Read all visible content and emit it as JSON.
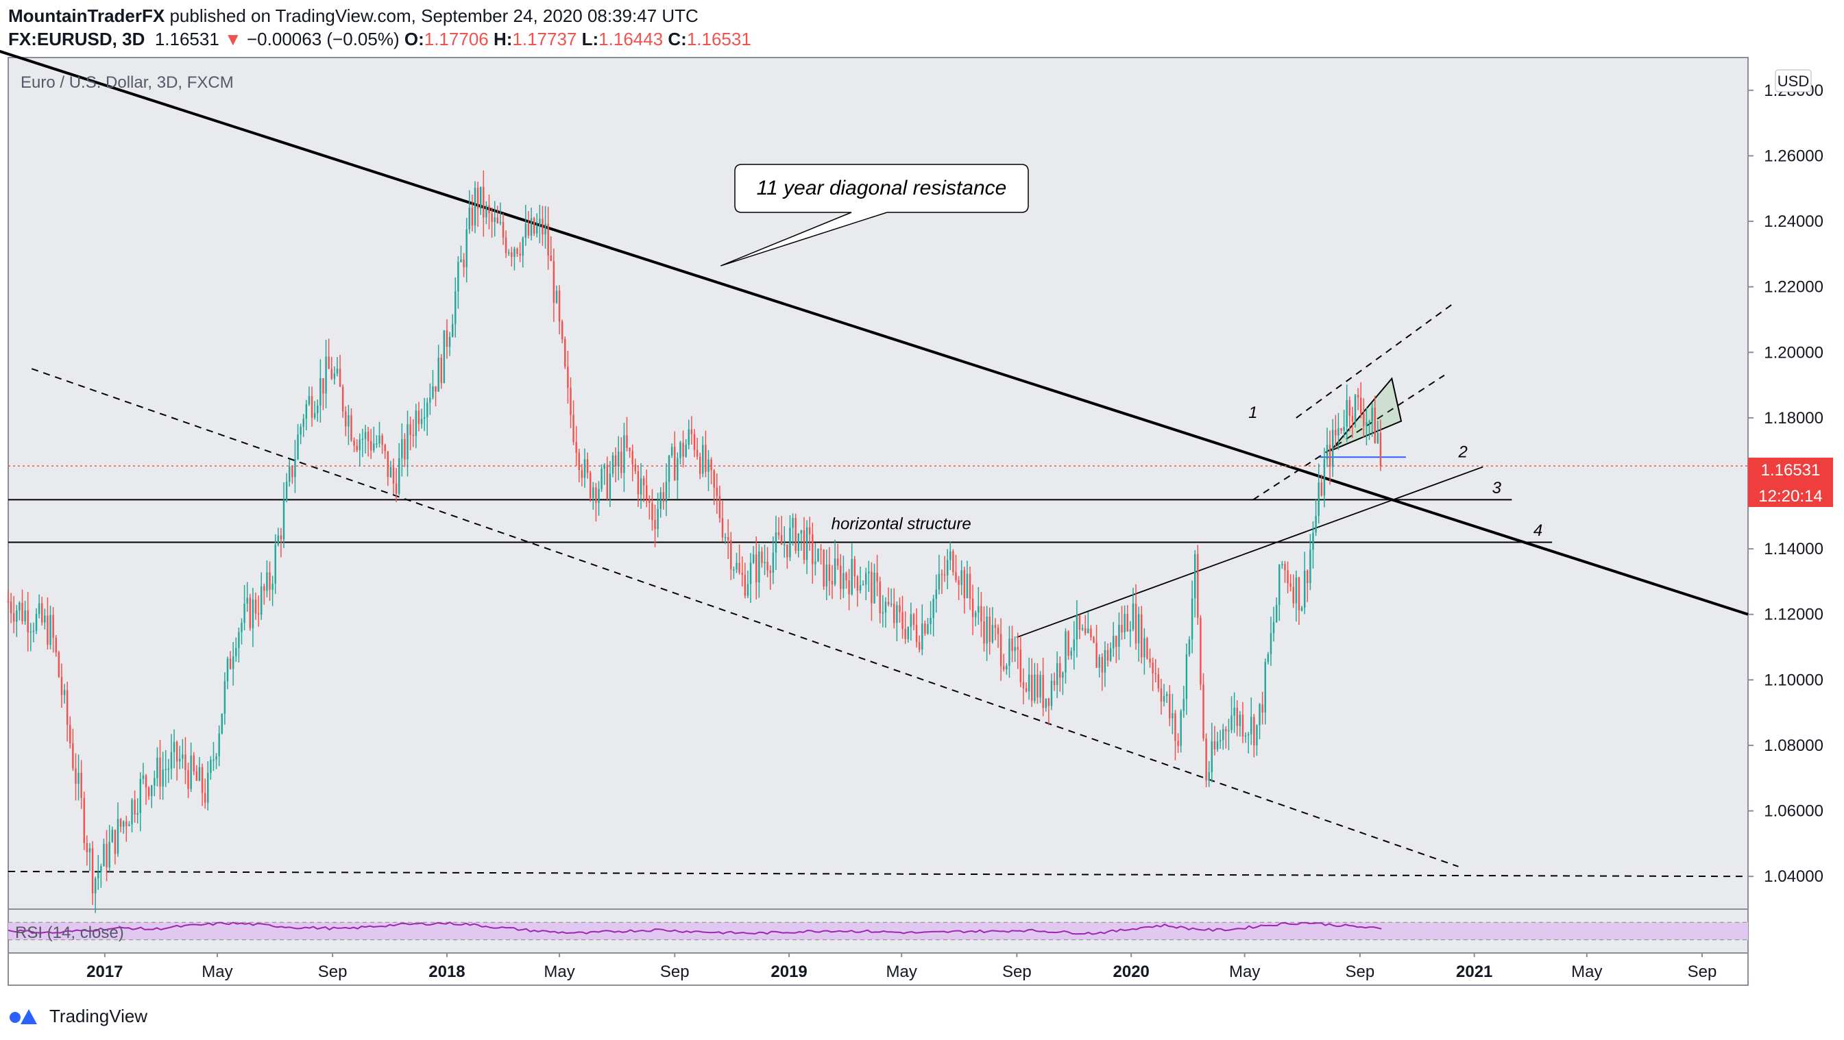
{
  "header": {
    "author": "MountainTraderFX",
    "published": " published on TradingView.com, September 24, 2020 08:39:47 UTC",
    "symbol": "FX:EURUSD, 3D",
    "last": "1.16531",
    "arrow": "▼",
    "change": "−0.00063 (−0.05%)",
    "o_label": "O:",
    "o_value": "1.17706",
    "h_label": "H:",
    "h_value": "1.17737",
    "l_label": "L:",
    "l_value": "1.16443",
    "c_label": "C:",
    "c_value": "1.16531"
  },
  "footer": {
    "brand": "TradingView",
    "logo_icon": "tradingview-logo-icon"
  },
  "colors": {
    "up": "#26a69a",
    "down": "#ef5350",
    "rsi": "#9c27b0",
    "rsi_band": "#e1c8f0",
    "price_badge": "#ef3e3e",
    "fib_green": "#4caf50",
    "fib_blue": "#2962ff"
  },
  "chart_data": {
    "type": "candlestick",
    "title": "Euro / U.S. Dollar, 3D, FXCM",
    "currency": "USD",
    "y_range": [
      1.03,
      1.29
    ],
    "y_ticks": [
      "1.28000",
      "1.26000",
      "1.24000",
      "1.22000",
      "1.20000",
      "1.18000",
      "1.16000",
      "1.14000",
      "1.12000",
      "1.10000",
      "1.08000",
      "1.06000",
      "1.04000"
    ],
    "x_range": [
      "2016-09-20",
      "2021-10-20"
    ],
    "x_ticks": [
      {
        "date": "2017-01-01",
        "label": "2017",
        "bold": true
      },
      {
        "date": "2017-05-01",
        "label": "May"
      },
      {
        "date": "2017-09-01",
        "label": "Sep"
      },
      {
        "date": "2018-01-01",
        "label": "2018",
        "bold": true
      },
      {
        "date": "2018-05-01",
        "label": "May"
      },
      {
        "date": "2018-09-01",
        "label": "Sep"
      },
      {
        "date": "2019-01-01",
        "label": "2019",
        "bold": true
      },
      {
        "date": "2019-05-01",
        "label": "May"
      },
      {
        "date": "2019-09-01",
        "label": "Sep"
      },
      {
        "date": "2020-01-01",
        "label": "2020",
        "bold": true
      },
      {
        "date": "2020-05-01",
        "label": "May"
      },
      {
        "date": "2020-09-01",
        "label": "Sep"
      },
      {
        "date": "2021-01-01",
        "label": "2021",
        "bold": true
      },
      {
        "date": "2021-05-01",
        "label": "May"
      },
      {
        "date": "2021-09-01",
        "label": "Sep"
      }
    ],
    "price_path": [
      [
        "2016-09-20",
        1.124
      ],
      [
        "2016-11-05",
        1.115
      ],
      [
        "2016-12-20",
        1.039
      ],
      [
        "2017-01-05",
        1.048
      ],
      [
        "2017-02-10",
        1.068
      ],
      [
        "2017-03-20",
        1.076
      ],
      [
        "2017-04-20",
        1.065
      ],
      [
        "2017-05-20",
        1.115
      ],
      [
        "2017-06-25",
        1.128
      ],
      [
        "2017-07-20",
        1.165
      ],
      [
        "2017-08-01",
        1.182
      ],
      [
        "2017-08-30",
        1.195
      ],
      [
        "2017-09-25",
        1.175
      ],
      [
        "2017-10-20",
        1.172
      ],
      [
        "2017-11-05",
        1.16
      ],
      [
        "2017-11-30",
        1.182
      ],
      [
        "2017-12-25",
        1.195
      ],
      [
        "2018-01-15",
        1.225
      ],
      [
        "2018-02-01",
        1.248
      ],
      [
        "2018-02-15",
        1.24
      ],
      [
        "2018-03-10",
        1.233
      ],
      [
        "2018-04-15",
        1.238
      ],
      [
        "2018-04-25",
        1.22
      ],
      [
        "2018-05-10",
        1.185
      ],
      [
        "2018-05-30",
        1.16
      ],
      [
        "2018-06-20",
        1.16
      ],
      [
        "2018-07-10",
        1.17
      ],
      [
        "2018-08-10",
        1.15
      ],
      [
        "2018-08-28",
        1.165
      ],
      [
        "2018-09-20",
        1.175
      ],
      [
        "2018-10-15",
        1.155
      ],
      [
        "2018-11-10",
        1.13
      ],
      [
        "2018-12-10",
        1.138
      ],
      [
        "2019-01-10",
        1.145
      ],
      [
        "2019-02-10",
        1.132
      ],
      [
        "2019-03-20",
        1.132
      ],
      [
        "2019-04-25",
        1.118
      ],
      [
        "2019-05-20",
        1.115
      ],
      [
        "2019-06-25",
        1.138
      ],
      [
        "2019-07-20",
        1.12
      ],
      [
        "2019-08-20",
        1.108
      ],
      [
        "2019-10-01",
        1.095
      ],
      [
        "2019-11-01",
        1.115
      ],
      [
        "2019-12-01",
        1.105
      ],
      [
        "2019-12-31",
        1.121
      ],
      [
        "2020-01-31",
        1.1
      ],
      [
        "2020-02-20",
        1.08
      ],
      [
        "2020-03-09",
        1.135
      ],
      [
        "2020-03-20",
        1.07
      ],
      [
        "2020-04-15",
        1.09
      ],
      [
        "2020-05-15",
        1.085
      ],
      [
        "2020-06-10",
        1.135
      ],
      [
        "2020-07-01",
        1.125
      ],
      [
        "2020-07-25",
        1.165
      ],
      [
        "2020-08-20",
        1.185
      ],
      [
        "2020-09-05",
        1.182
      ],
      [
        "2020-09-20",
        1.175
      ],
      [
        "2020-09-24",
        1.16531
      ]
    ],
    "lines": [
      {
        "id": "diagonal-resistance",
        "label": "1",
        "style": "solid-thick",
        "from": [
          "2016-09-10",
          1.292
        ],
        "to": [
          "2021-10-20",
          1.12
        ],
        "label_at": [
          "2020-05-05",
          1.18
        ]
      },
      {
        "id": "lower-channel-trendline",
        "style": "dashed",
        "from": [
          "2016-10-15",
          1.195
        ],
        "to": [
          "2020-12-15",
          1.043
        ]
      },
      {
        "id": "horizontal-structure-line",
        "label": "3",
        "style": "solid",
        "from": [
          "2016-09-20",
          1.155
        ],
        "to": [
          "2021-02-10",
          1.155
        ],
        "label_at": [
          "2021-01-20",
          1.157
        ]
      },
      {
        "id": "support-line-4",
        "label": "4",
        "style": "solid",
        "from": [
          "2016-09-20",
          1.142
        ],
        "to": [
          "2021-03-25",
          1.142
        ],
        "label_at": [
          "2021-03-05",
          1.144
        ]
      },
      {
        "id": "rising-trendline-2",
        "label": "2",
        "style": "solid-thin",
        "from": [
          "2019-09-01",
          1.113
        ],
        "to": [
          "2021-01-10",
          1.165
        ],
        "label_at": [
          "2020-12-15",
          1.168
        ]
      },
      {
        "id": "bottom-dashed-line",
        "style": "dashed",
        "from": [
          "2016-09-20",
          1.0415
        ],
        "to": [
          "2021-10-20",
          1.04
        ]
      },
      {
        "id": "flag-upper-dashed",
        "style": "dashed",
        "from": [
          "2020-06-25",
          1.18
        ],
        "to": [
          "2020-12-10",
          1.215
        ]
      },
      {
        "id": "flag-lower-dashed",
        "style": "dashed",
        "from": [
          "2020-05-10",
          1.155
        ],
        "to": [
          "2020-11-30",
          1.193
        ]
      },
      {
        "id": "fib-blue-line",
        "style": "blue",
        "from": [
          "2020-07-20",
          1.168
        ],
        "to": [
          "2020-10-20",
          1.168
        ]
      },
      {
        "id": "current-price-dotted",
        "style": "dotted-red",
        "from": [
          "2016-09-20",
          1.16531
        ],
        "to": [
          "2021-10-20",
          1.16531
        ]
      }
    ],
    "triangle": [
      [
        "2020-08-01",
        1.17
      ],
      [
        "2020-10-05",
        1.192
      ],
      [
        "2020-10-15",
        1.179
      ]
    ],
    "annotations": [
      {
        "text": "11 year diagonal resistance",
        "type": "callout"
      },
      {
        "text": "horizontal structure",
        "type": "text",
        "at": [
          "2019-02-15",
          1.146
        ]
      }
    ],
    "last_price": "1.16531",
    "countdown": "12:20:14",
    "rsi": {
      "label": "RSI (14, close)",
      "upper": 70,
      "lower": 30,
      "values": [
        52,
        48,
        46,
        51,
        55,
        57,
        54,
        60,
        64,
        68,
        66,
        62,
        58,
        57,
        55,
        60,
        64,
        66,
        68,
        66,
        60,
        55,
        50,
        47,
        45,
        49,
        51,
        53,
        50,
        48,
        46,
        45,
        47,
        49,
        51,
        50,
        49,
        47,
        46,
        48,
        50,
        49,
        52,
        50,
        47,
        45,
        50,
        58,
        63,
        56,
        52,
        55,
        62,
        67,
        69,
        64,
        60,
        55
      ]
    }
  }
}
